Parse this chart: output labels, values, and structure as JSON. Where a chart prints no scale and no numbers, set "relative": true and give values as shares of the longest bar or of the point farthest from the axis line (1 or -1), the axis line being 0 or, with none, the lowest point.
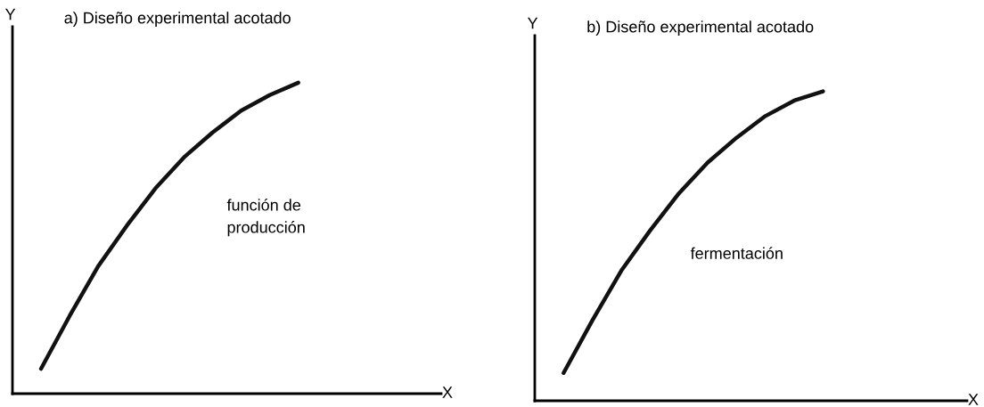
{
  "chart_data": [
    {
      "type": "line",
      "relative": true,
      "title": "a) Diseño experimental acotado",
      "xlabel": "X",
      "ylabel": "Y",
      "annotations": [
        "función de\nproducción"
      ],
      "line_style": "solid",
      "categories": [
        null,
        null,
        null,
        null,
        null,
        null,
        null,
        null,
        null,
        null,
        null,
        null,
        null,
        null,
        null,
        null
      ],
      "series": [
        {
          "color": "#111111",
          "values": [
            null,
            0.08,
            0.25,
            0.41,
            0.54,
            0.66,
            0.76,
            0.84,
            0.91,
            0.96,
            1.0,
            null,
            null,
            null,
            null,
            null
          ]
        }
      ]
    },
    {
      "type": "line",
      "relative": true,
      "title": "b) Diseño experimental acotado",
      "xlabel": "X",
      "ylabel": "Y",
      "annotations": [
        "fermentación"
      ],
      "line_style": "solid",
      "categories": [
        null,
        null,
        null,
        null,
        null,
        null,
        null,
        null,
        null,
        null,
        null,
        null,
        null,
        null,
        null,
        null
      ],
      "series": [
        {
          "color": "#111111",
          "values": [
            null,
            0.09,
            0.26,
            0.42,
            0.55,
            0.67,
            0.77,
            0.85,
            0.92,
            0.97,
            1.0,
            null,
            null,
            null,
            null,
            null
          ]
        }
      ]
    }
  ]
}
